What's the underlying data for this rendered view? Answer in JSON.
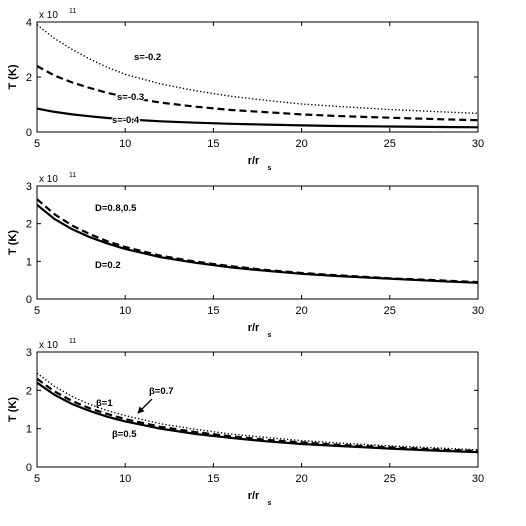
{
  "chart_data": [
    {
      "type": "line",
      "title": "",
      "xlabel": "r/r",
      "xlabel_sub": "s",
      "ylabel": "T (K)",
      "y_exponent": "x 10",
      "y_exponent_power": "11",
      "xlim": [
        5,
        30
      ],
      "ylim": [
        0,
        4
      ],
      "x_ticks": [
        5,
        10,
        15,
        20,
        25,
        30
      ],
      "y_ticks": [
        0,
        2,
        4
      ],
      "grid": false,
      "series": [
        {
          "name": "s=-0.2",
          "style": "dotted",
          "x": [
            5,
            6,
            7,
            8,
            9,
            10,
            12,
            14,
            16,
            18,
            20,
            22,
            25,
            28,
            30
          ],
          "y": [
            3.9,
            3.4,
            3.0,
            2.65,
            2.35,
            2.1,
            1.75,
            1.5,
            1.3,
            1.15,
            1.02,
            0.93,
            0.82,
            0.73,
            0.68
          ]
        },
        {
          "name": "s=-0.3",
          "style": "dashed",
          "x": [
            5,
            6,
            7,
            8,
            9,
            10,
            12,
            14,
            16,
            18,
            20,
            22,
            25,
            28,
            30
          ],
          "y": [
            2.4,
            2.05,
            1.8,
            1.6,
            1.42,
            1.28,
            1.07,
            0.92,
            0.8,
            0.72,
            0.64,
            0.58,
            0.52,
            0.46,
            0.43
          ]
        },
        {
          "name": "s=-0.4",
          "style": "solid",
          "x": [
            5,
            6,
            7,
            8,
            9,
            10,
            12,
            14,
            16,
            18,
            20,
            22,
            25,
            28,
            30
          ],
          "y": [
            0.85,
            0.73,
            0.64,
            0.57,
            0.51,
            0.46,
            0.39,
            0.34,
            0.3,
            0.27,
            0.24,
            0.22,
            0.2,
            0.18,
            0.17
          ]
        }
      ],
      "annotations": [
        {
          "text": "s=-0.2",
          "x": 6.5,
          "y": 3.0
        },
        {
          "text": "s=-0.3",
          "x": 6.0,
          "y": 1.4
        },
        {
          "text": "s=-0.4",
          "x": 6.3,
          "y": 0.4
        }
      ]
    },
    {
      "type": "line",
      "title": "",
      "xlabel": "r/r",
      "xlabel_sub": "s",
      "ylabel": "T (K)",
      "y_exponent": "x 10",
      "y_exponent_power": "11",
      "xlim": [
        5,
        30
      ],
      "ylim": [
        0,
        3
      ],
      "x_ticks": [
        5,
        10,
        15,
        20,
        25,
        30
      ],
      "y_ticks": [
        0,
        1,
        2,
        3
      ],
      "grid": false,
      "series": [
        {
          "name": "D=0.8,0.5",
          "style": "dashed",
          "x": [
            5,
            6,
            7,
            8,
            9,
            10,
            12,
            14,
            16,
            18,
            20,
            22,
            25,
            28,
            30
          ],
          "y": [
            2.65,
            2.25,
            1.95,
            1.72,
            1.53,
            1.38,
            1.15,
            0.99,
            0.87,
            0.77,
            0.69,
            0.63,
            0.55,
            0.49,
            0.45
          ]
        },
        {
          "name": "D=0.2",
          "style": "solid",
          "x": [
            5,
            6,
            7,
            8,
            9,
            10,
            12,
            14,
            16,
            18,
            20,
            22,
            25,
            28,
            30
          ],
          "y": [
            2.5,
            2.12,
            1.85,
            1.64,
            1.47,
            1.33,
            1.11,
            0.96,
            0.84,
            0.75,
            0.67,
            0.61,
            0.54,
            0.47,
            0.43
          ]
        }
      ],
      "annotations": [
        {
          "text": "D=0.8,0.5",
          "x": 6.2,
          "y": 2.25
        },
        {
          "text": "D=0.2",
          "x": 6.2,
          "y": 1.05
        }
      ]
    },
    {
      "type": "line",
      "title": "",
      "xlabel": "r/r",
      "xlabel_sub": "s",
      "ylabel": "T (K)",
      "y_exponent": "x 10",
      "y_exponent_power": "11",
      "xlim": [
        5,
        30
      ],
      "ylim": [
        0,
        3
      ],
      "x_ticks": [
        5,
        10,
        15,
        20,
        25,
        30
      ],
      "y_ticks": [
        0,
        1,
        2,
        3
      ],
      "grid": false,
      "series": [
        {
          "name": "β=1",
          "style": "dotted",
          "x": [
            5,
            6,
            7,
            8,
            9,
            10,
            12,
            14,
            16,
            18,
            20,
            22,
            25,
            28,
            30
          ],
          "y": [
            2.45,
            2.1,
            1.84,
            1.63,
            1.47,
            1.34,
            1.13,
            0.98,
            0.86,
            0.77,
            0.69,
            0.63,
            0.55,
            0.49,
            0.45
          ]
        },
        {
          "name": "β=0.7",
          "style": "dashed",
          "x": [
            5,
            6,
            7,
            8,
            9,
            10,
            12,
            14,
            16,
            18,
            20,
            22,
            25,
            28,
            30
          ],
          "y": [
            2.3,
            1.97,
            1.72,
            1.53,
            1.38,
            1.25,
            1.05,
            0.91,
            0.8,
            0.71,
            0.64,
            0.58,
            0.51,
            0.45,
            0.42
          ]
        },
        {
          "name": "β=0.5",
          "style": "solid",
          "x": [
            5,
            6,
            7,
            8,
            9,
            10,
            12,
            14,
            16,
            18,
            20,
            22,
            25,
            28,
            30
          ],
          "y": [
            2.2,
            1.88,
            1.64,
            1.46,
            1.31,
            1.19,
            1.0,
            0.86,
            0.76,
            0.67,
            0.6,
            0.55,
            0.48,
            0.42,
            0.39
          ]
        }
      ],
      "annotations": [
        {
          "text": "β=1",
          "x": 6.0,
          "y": 1.82
        },
        {
          "text": "β=0.7",
          "x": 10.0,
          "y": 1.72
        },
        {
          "text": "β=0.5",
          "x": 8.2,
          "y": 0.98
        }
      ]
    }
  ]
}
